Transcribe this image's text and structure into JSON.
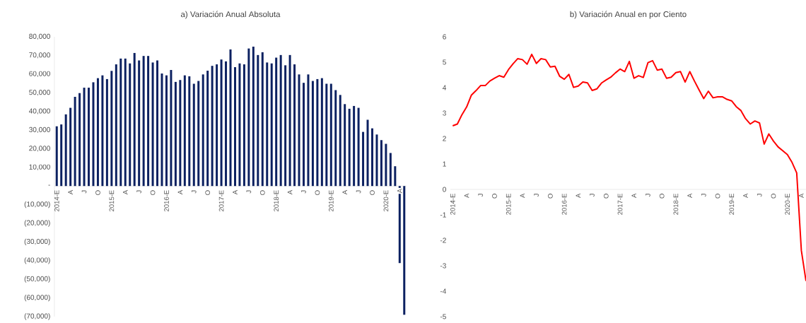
{
  "chart_data": [
    {
      "type": "bar",
      "title": "a) Variación Anual Absoluta",
      "categories": [
        "2014-E",
        null,
        null,
        "A",
        null,
        null,
        "J",
        null,
        null,
        "O",
        null,
        null,
        "2015-E",
        null,
        null,
        "A",
        null,
        null,
        "J",
        null,
        null,
        "O",
        null,
        null,
        "2016-E",
        null,
        null,
        "A",
        null,
        null,
        "J",
        null,
        null,
        "O",
        null,
        null,
        "2017-E",
        null,
        null,
        "A",
        null,
        null,
        "J",
        null,
        null,
        "O",
        null,
        null,
        "2018-E",
        null,
        null,
        "A",
        null,
        null,
        "J",
        null,
        null,
        "O",
        null,
        null,
        "2019-E",
        null,
        null,
        "A",
        null,
        null,
        "J",
        null,
        null,
        "O",
        null,
        null,
        "2020-E",
        null,
        null,
        "A",
        null
      ],
      "values": [
        32000,
        33000,
        38400,
        41900,
        47800,
        49800,
        52700,
        52700,
        55600,
        57800,
        59300,
        57300,
        61700,
        65200,
        68300,
        68300,
        65700,
        71300,
        67300,
        69700,
        69700,
        66200,
        67300,
        60300,
        59300,
        62200,
        55800,
        56800,
        59300,
        58800,
        54800,
        56300,
        59800,
        61800,
        64400,
        65200,
        67800,
        66800,
        73200,
        63700,
        65700,
        65200,
        73700,
        74700,
        70200,
        71700,
        66200,
        65700,
        68800,
        70200,
        64700,
        70200,
        65200,
        59800,
        55300,
        59800,
        56300,
        57300,
        57800,
        54800,
        54800,
        51400,
        48800,
        43900,
        41400,
        42900,
        41900,
        29000,
        35500,
        30900,
        27600,
        24600,
        22600,
        17700,
        10600,
        -41300,
        -69000
      ],
      "color": "#0c2161",
      "ylim": [
        -70000,
        80000
      ],
      "yticks": [
        {
          "value": -70000,
          "label": "(70,000)"
        },
        {
          "value": -60000,
          "label": "(60,000)"
        },
        {
          "value": -50000,
          "label": "(50,000)"
        },
        {
          "value": -40000,
          "label": "(40,000)"
        },
        {
          "value": -30000,
          "label": "(30,000)"
        },
        {
          "value": -20000,
          "label": "(20,000)"
        },
        {
          "value": -10000,
          "label": "(10,000)"
        },
        {
          "value": 0,
          "label": "-"
        },
        {
          "value": 10000,
          "label": "10,000"
        },
        {
          "value": 20000,
          "label": "20,000"
        },
        {
          "value": 30000,
          "label": "30,000"
        },
        {
          "value": 40000,
          "label": "40,000"
        },
        {
          "value": 50000,
          "label": "50,000"
        },
        {
          "value": 60000,
          "label": "60,000"
        },
        {
          "value": 70000,
          "label": "70,000"
        },
        {
          "value": 80000,
          "label": "80,000"
        }
      ]
    },
    {
      "type": "line",
      "title": "b) Variación Anual en por Ciento",
      "categories": [
        "2014-E",
        null,
        null,
        "A",
        null,
        null,
        "J",
        null,
        null,
        "O",
        null,
        null,
        "2015-E",
        null,
        null,
        "A",
        null,
        null,
        "J",
        null,
        null,
        "O",
        null,
        null,
        "2016-E",
        null,
        null,
        "A",
        null,
        null,
        "J",
        null,
        null,
        "O",
        null,
        null,
        "2017-E",
        null,
        null,
        "A",
        null,
        null,
        "J",
        null,
        null,
        "O",
        null,
        null,
        "2018-E",
        null,
        null,
        "A",
        null,
        null,
        "J",
        null,
        null,
        "O",
        null,
        null,
        "2019-E",
        null,
        null,
        "A",
        null,
        null,
        "J",
        null,
        null,
        "O",
        null,
        null,
        "2020-E",
        null,
        null,
        "A",
        null
      ],
      "values": [
        2.5,
        2.57,
        2.94,
        3.24,
        3.7,
        3.88,
        4.08,
        4.08,
        4.26,
        4.37,
        4.47,
        4.41,
        4.71,
        4.94,
        5.14,
        5.1,
        4.92,
        5.31,
        4.95,
        5.14,
        5.1,
        4.81,
        4.84,
        4.45,
        4.33,
        4.52,
        4.01,
        4.06,
        4.22,
        4.19,
        3.89,
        3.95,
        4.18,
        4.3,
        4.41,
        4.58,
        4.73,
        4.63,
        5.03,
        4.37,
        4.47,
        4.4,
        4.98,
        5.06,
        4.69,
        4.73,
        4.37,
        4.41,
        4.59,
        4.63,
        4.22,
        4.63,
        4.26,
        3.91,
        3.57,
        3.86,
        3.6,
        3.64,
        3.64,
        3.54,
        3.48,
        3.25,
        3.1,
        2.78,
        2.57,
        2.69,
        2.61,
        1.78,
        2.18,
        1.9,
        1.67,
        1.52,
        1.37,
        1.06,
        0.65,
        -2.4,
        -3.6
      ],
      "color": "#ff0000",
      "ylim": [
        -5,
        6
      ],
      "yticks": [
        -5,
        -4,
        -3,
        -2,
        -1,
        0,
        1,
        2,
        3,
        4,
        5,
        6
      ]
    }
  ]
}
